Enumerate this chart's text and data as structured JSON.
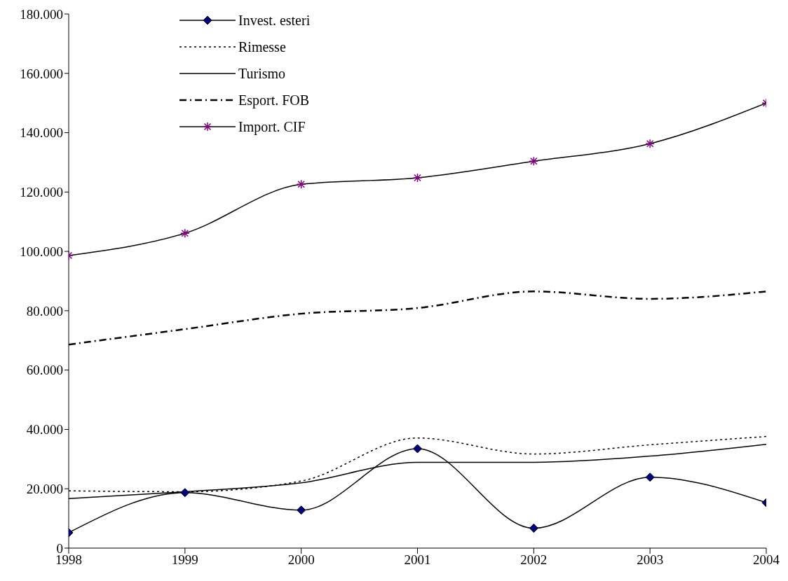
{
  "chart_data": {
    "type": "line",
    "categories": [
      "1998",
      "1999",
      "2000",
      "2001",
      "2002",
      "2003",
      "2004"
    ],
    "series": [
      {
        "name": "Invest. esteri",
        "color": "#000000",
        "colors": [
          "#000080",
          "#000080",
          "#000080",
          "#000080",
          "#000080",
          "#000080",
          "#000080"
        ],
        "marker": "diamond",
        "line_style": "solid",
        "values": [
          5200,
          18700,
          12800,
          33500,
          6700,
          23900,
          15300
        ]
      },
      {
        "name": "Rimesse",
        "color": "#000000",
        "marker": "none",
        "line_style": "dotted",
        "values": [
          19300,
          19000,
          22600,
          37100,
          31700,
          34800,
          37600
        ]
      },
      {
        "name": "Turismo",
        "color": "#000000",
        "marker": "none",
        "line_style": "solid",
        "values": [
          16700,
          19000,
          22000,
          28900,
          28900,
          31000,
          35000
        ]
      },
      {
        "name": "Esport. FOB",
        "color": "#000000",
        "marker": "none",
        "line_style": "dashdot",
        "values": [
          68600,
          73800,
          79000,
          80900,
          86500,
          84000,
          86500
        ]
      },
      {
        "name": "Import. CIF",
        "color": "#000000",
        "colors": [
          "#800080",
          "#800080",
          "#800080",
          "#800080",
          "#800080",
          "#800080",
          "#800080"
        ],
        "marker": "cross",
        "line_style": "solid",
        "values": [
          98600,
          106100,
          122600,
          124800,
          130400,
          136300,
          150000
        ]
      }
    ],
    "ylim": [
      0,
      180000
    ],
    "yticks": [
      {
        "value": 0,
        "label": "0"
      },
      {
        "value": 20000,
        "label": "20.000"
      },
      {
        "value": 40000,
        "label": "40.000"
      },
      {
        "value": 60000,
        "label": "60.000"
      },
      {
        "value": 80000,
        "label": "80.000"
      },
      {
        "value": 100000,
        "label": "100.000"
      },
      {
        "value": 120000,
        "label": "120.000"
      },
      {
        "value": 140000,
        "label": "140.000"
      },
      {
        "value": 160000,
        "label": "160.000"
      },
      {
        "value": 180000,
        "label": "180.000"
      }
    ],
    "grid": false,
    "legend": "top left"
  }
}
